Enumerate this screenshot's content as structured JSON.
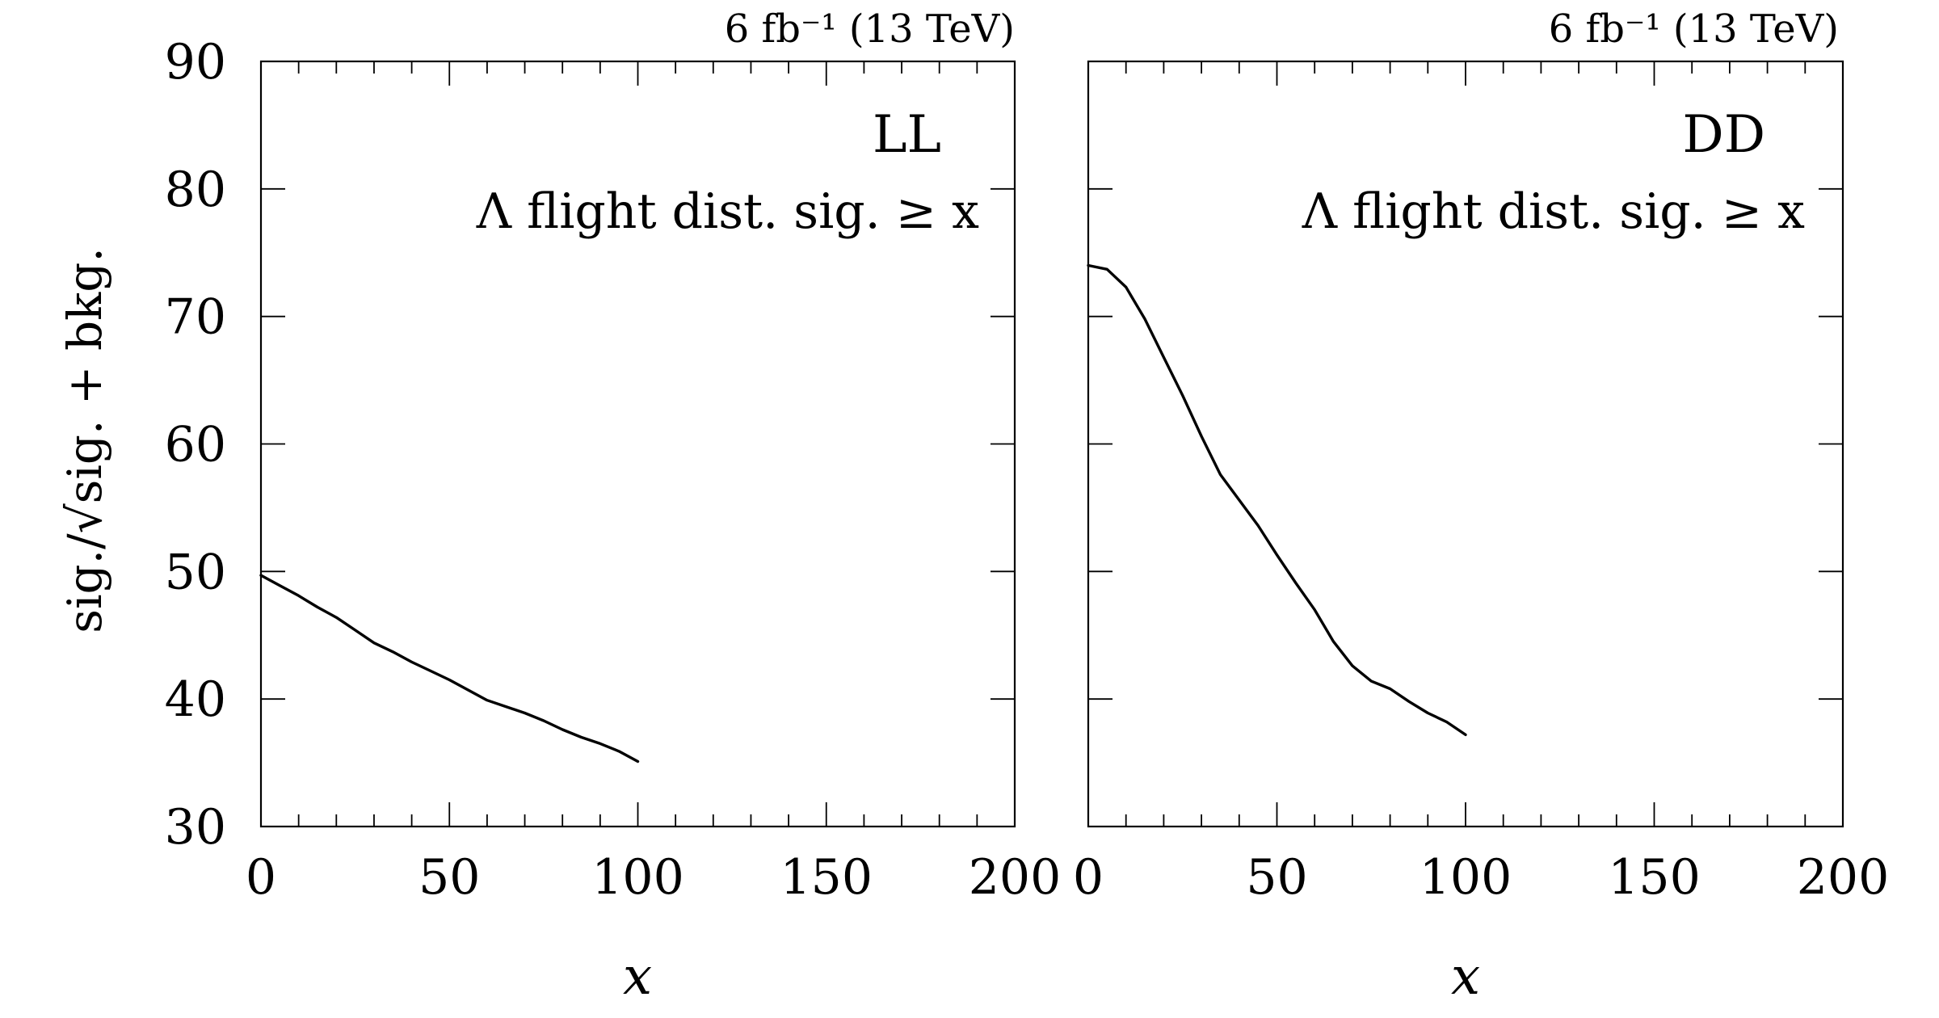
{
  "figure": {
    "y_axis_label": "sig./√sig. + bkg.",
    "y_ticks": [
      "30",
      "40",
      "50",
      "60",
      "70",
      "80",
      "90"
    ],
    "x_ticks": [
      "0",
      "50",
      "100",
      "150",
      "200"
    ]
  },
  "chart_data": [
    {
      "type": "line",
      "lumi_label": "6 fb⁻¹ (13 TeV)",
      "region_label": "LL",
      "selection_label": "Λ flight dist. sig. ≥ x",
      "xlabel": "x",
      "ylabel": "sig./√sig. + bkg.",
      "xlim": [
        0,
        200
      ],
      "ylim": [
        30,
        90
      ],
      "grid": false,
      "x": [
        0,
        5,
        10,
        15,
        20,
        25,
        30,
        35,
        40,
        45,
        50,
        55,
        60,
        65,
        70,
        75,
        80,
        85,
        90,
        95,
        100
      ],
      "y": [
        49.7,
        48.9,
        48.1,
        47.2,
        46.4,
        45.4,
        44.4,
        43.7,
        42.9,
        42.2,
        41.5,
        40.7,
        39.9,
        39.4,
        38.9,
        38.3,
        37.6,
        37.0,
        36.5,
        35.9,
        35.1
      ]
    },
    {
      "type": "line",
      "lumi_label": "6 fb⁻¹ (13 TeV)",
      "region_label": "DD",
      "selection_label": "Λ flight dist. sig. ≥ x",
      "xlabel": "x",
      "ylabel": "",
      "xlim": [
        0,
        200
      ],
      "ylim": [
        30,
        90
      ],
      "grid": false,
      "x": [
        0,
        5,
        10,
        15,
        20,
        25,
        30,
        35,
        40,
        45,
        50,
        55,
        60,
        65,
        70,
        75,
        80,
        85,
        90,
        95,
        100
      ],
      "y": [
        74.0,
        73.7,
        72.3,
        69.8,
        66.8,
        63.8,
        60.6,
        57.6,
        55.6,
        53.6,
        51.3,
        49.1,
        47.0,
        44.5,
        42.6,
        41.4,
        40.8,
        39.8,
        38.9,
        38.2,
        37.2
      ]
    }
  ]
}
